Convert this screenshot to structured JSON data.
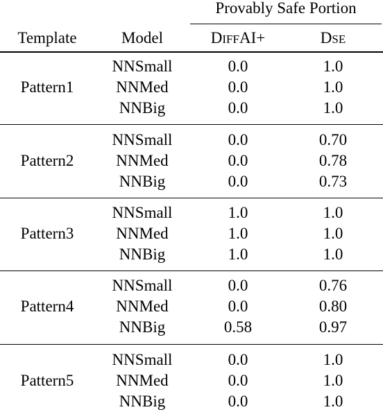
{
  "header": {
    "group_label": "Provably Safe Portion",
    "template_label": "Template",
    "model_label": "Model",
    "col_diffai": {
      "cap1": "D",
      "small": "IFF",
      "cap2": "AI+"
    },
    "col_dse": {
      "cap": "D",
      "small": "SE"
    }
  },
  "groups": [
    {
      "template": "Pattern1",
      "rows": [
        {
          "model": "NNSmall",
          "diffai": "0.0",
          "dse": "1.0"
        },
        {
          "model": "NNMed",
          "diffai": "0.0",
          "dse": "1.0"
        },
        {
          "model": "NNBig",
          "diffai": "0.0",
          "dse": "1.0"
        }
      ]
    },
    {
      "template": "Pattern2",
      "rows": [
        {
          "model": "NNSmall",
          "diffai": "0.0",
          "dse": "0.70"
        },
        {
          "model": "NNMed",
          "diffai": "0.0",
          "dse": "0.78"
        },
        {
          "model": "NNBig",
          "diffai": "0.0",
          "dse": "0.73"
        }
      ]
    },
    {
      "template": "Pattern3",
      "rows": [
        {
          "model": "NNSmall",
          "diffai": "1.0",
          "dse": "1.0"
        },
        {
          "model": "NNMed",
          "diffai": "1.0",
          "dse": "1.0"
        },
        {
          "model": "NNBig",
          "diffai": "1.0",
          "dse": "1.0"
        }
      ]
    },
    {
      "template": "Pattern4",
      "rows": [
        {
          "model": "NNSmall",
          "diffai": "0.0",
          "dse": "0.76"
        },
        {
          "model": "NNMed",
          "diffai": "0.0",
          "dse": "0.80"
        },
        {
          "model": "NNBig",
          "diffai": "0.58",
          "dse": "0.97"
        }
      ]
    },
    {
      "template": "Pattern5",
      "rows": [
        {
          "model": "NNSmall",
          "diffai": "0.0",
          "dse": "1.0"
        },
        {
          "model": "NNMed",
          "diffai": "0.0",
          "dse": "1.0"
        },
        {
          "model": "NNBig",
          "diffai": "0.0",
          "dse": "1.0"
        }
      ]
    }
  ]
}
